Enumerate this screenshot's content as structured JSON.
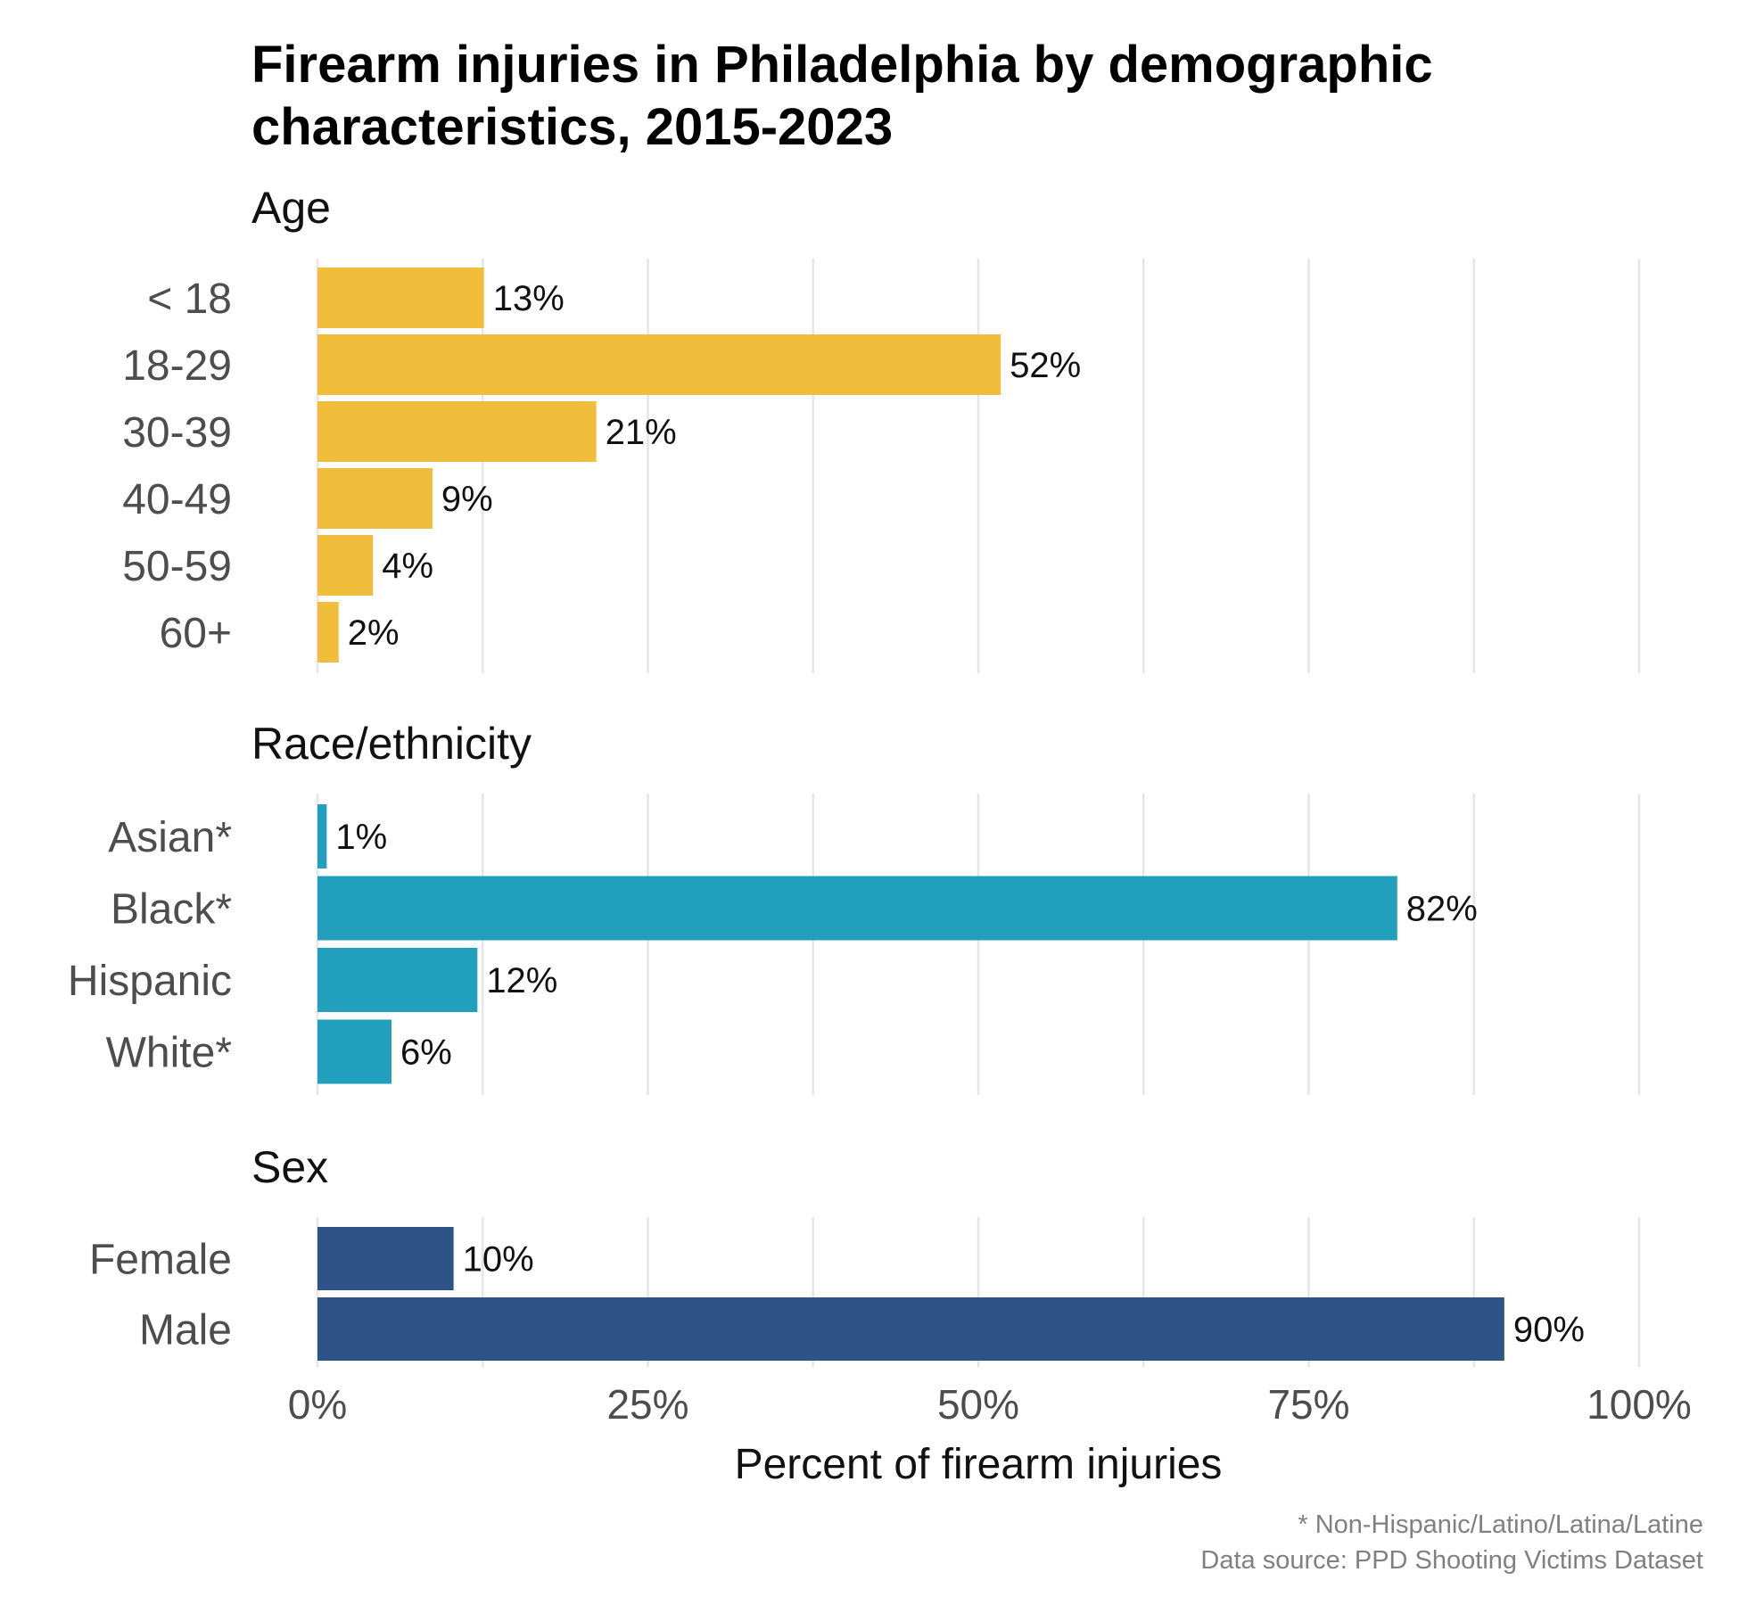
{
  "chart_data": {
    "type": "bar",
    "orientation": "horizontal",
    "title": "Firearm injuries in Philadelphia by demographic characteristics, 2015-2023",
    "title_lines": [
      "Firearm injuries in Philadelphia by demographic",
      "characteristics, 2015-2023"
    ],
    "xlabel": "Percent of firearm injuries",
    "xlim": [
      0,
      100
    ],
    "x_ticks": [
      0,
      25,
      50,
      75,
      100
    ],
    "x_tick_labels": [
      "0%",
      "25%",
      "50%",
      "75%",
      "100%"
    ],
    "grid": true,
    "panels": [
      {
        "title": "Age",
        "color": "#f0be3a",
        "categories": [
          "< 18",
          "18-29",
          "30-39",
          "40-49",
          "50-59",
          "60+"
        ],
        "values": [
          12.6,
          51.7,
          21.1,
          8.7,
          4.2,
          1.6
        ],
        "value_labels": [
          "13%",
          "52%",
          "21%",
          "9%",
          "4%",
          "2%"
        ]
      },
      {
        "title": "Race/ethnicity",
        "color": "#219fbd",
        "categories": [
          "Asian*",
          "Black*",
          "Hispanic",
          "White*"
        ],
        "values": [
          0.7,
          81.7,
          12.1,
          5.6
        ],
        "value_labels": [
          "1%",
          "82%",
          "12%",
          "6%"
        ]
      },
      {
        "title": "Sex",
        "color": "#2e5387",
        "categories": [
          "Female",
          "Male"
        ],
        "values": [
          10.3,
          89.8
        ],
        "value_labels": [
          "10%",
          "90%"
        ]
      }
    ],
    "caption_lines": [
      "* Non-Hispanic/Latino/Latina/Latine",
      "Data source: PPD Shooting Victims Dataset"
    ]
  }
}
